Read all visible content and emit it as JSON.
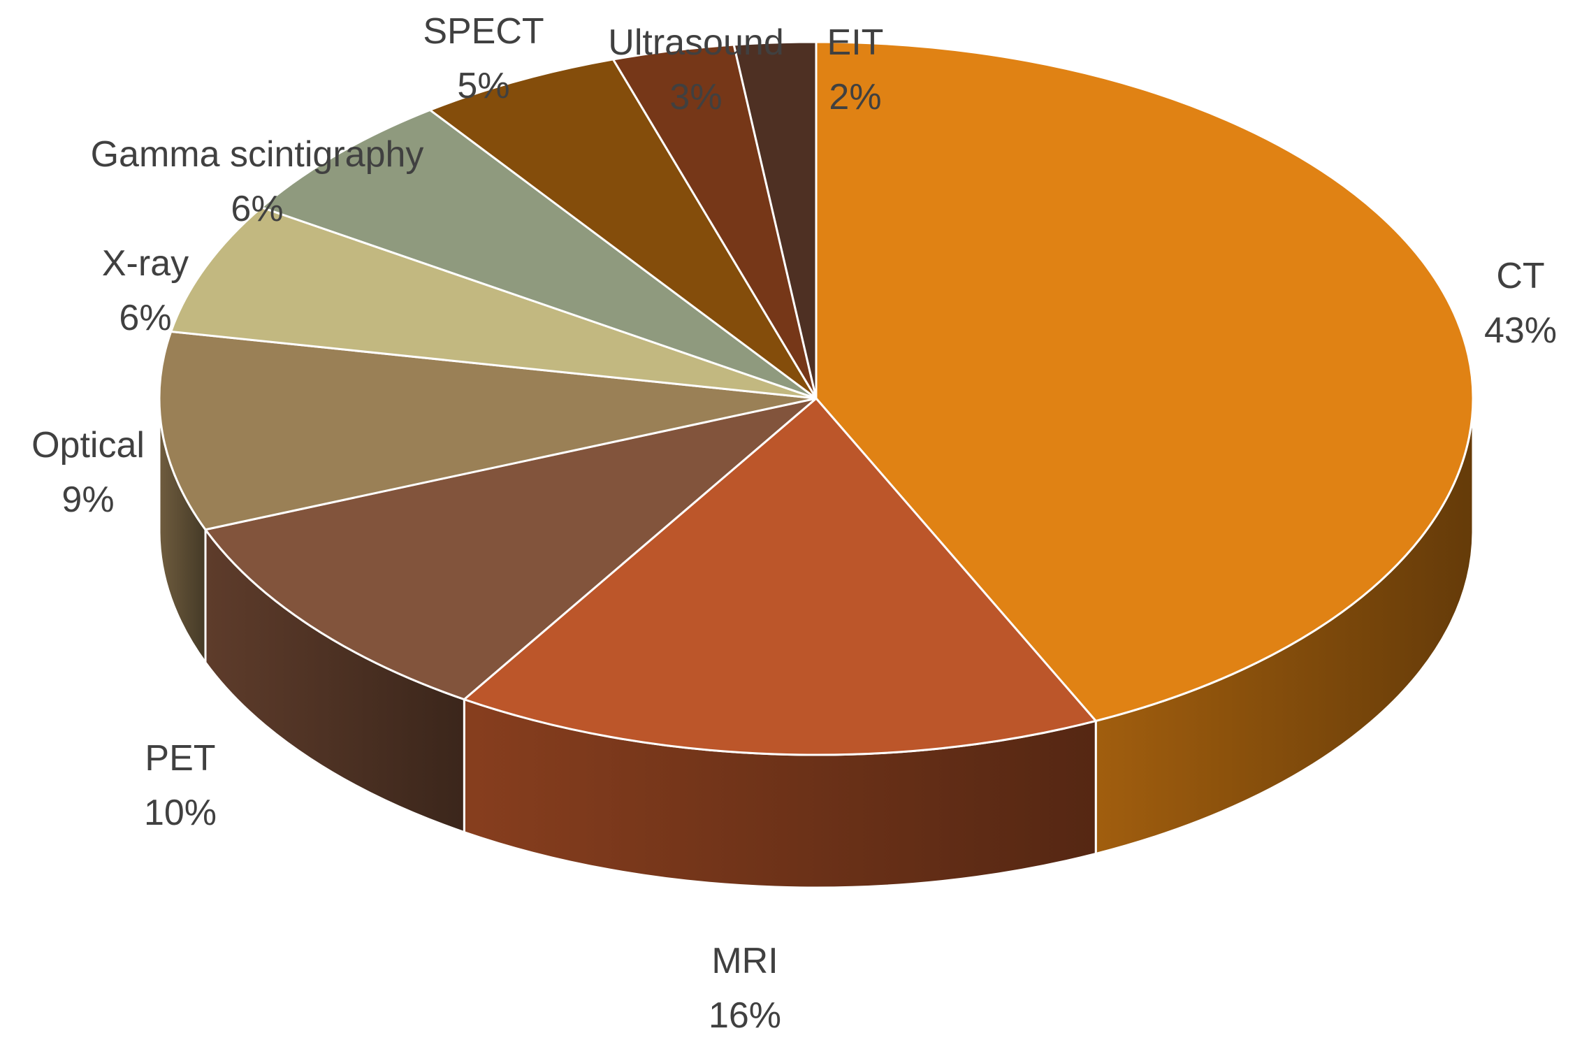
{
  "chart_data": {
    "type": "pie",
    "style": "3d",
    "title": "",
    "slices": [
      {
        "label": "CT",
        "value": 43,
        "display": "43%",
        "color": "#e08214"
      },
      {
        "label": "MRI",
        "value": 16,
        "display": "16%",
        "color": "#bc562a"
      },
      {
        "label": "PET",
        "value": 10,
        "display": "10%",
        "color": "#82543c"
      },
      {
        "label": "Optical",
        "value": 9,
        "display": "9%",
        "color": "#9a8056"
      },
      {
        "label": "X-ray",
        "value": 6,
        "display": "6%",
        "color": "#c2b880"
      },
      {
        "label": "Gamma scintigraphy",
        "value": 6,
        "display": "6%",
        "color": "#8f9a7e"
      },
      {
        "label": "SPECT",
        "value": 5,
        "display": "5%",
        "color": "#844d0b"
      },
      {
        "label": "Ultrasound",
        "value": 3,
        "display": "3%",
        "color": "#763718"
      },
      {
        "label": "EIT",
        "value": 2,
        "display": "2%",
        "color": "#4e3023"
      }
    ],
    "start_angle": "12 o'clock",
    "direction": "clockwise",
    "legend": "none",
    "data_labels": "outside slices (category name and percentage)"
  }
}
